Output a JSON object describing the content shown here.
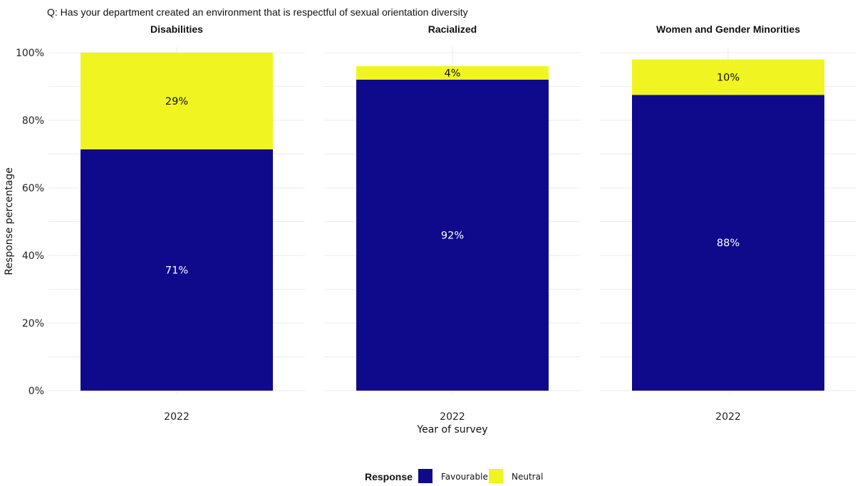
{
  "chart_data": {
    "type": "bar",
    "stacked": true,
    "title": "Q: Has your department created an environment that is respectful of sexual orientation diversity",
    "xlabel": "Year of survey",
    "ylabel": "Response percentage",
    "ylim": [
      0,
      100
    ],
    "yticks": [
      "0%",
      "20%",
      "40%",
      "60%",
      "80%",
      "100%"
    ],
    "grid": true,
    "legend": {
      "title": "Response",
      "position": "bottom",
      "items": [
        {
          "name": "Favourable",
          "color": "#0f0a8c"
        },
        {
          "name": "Neutral",
          "color": "#f0f522"
        }
      ]
    },
    "facets": [
      {
        "name": "Disabilities",
        "categories": [
          "2022"
        ],
        "series": [
          {
            "name": "Favourable",
            "values": [
              71
            ],
            "value_fraction": [
              0.714
            ],
            "label": "71%",
            "label_color": "#ffffff"
          },
          {
            "name": "Neutral",
            "values": [
              29
            ],
            "value_fraction": [
              0.286
            ],
            "label": "29%",
            "label_color": "#111111"
          }
        ]
      },
      {
        "name": "Racialized",
        "categories": [
          "2022"
        ],
        "series": [
          {
            "name": "Favourable",
            "values": [
              92
            ],
            "value_fraction": [
              0.92
            ],
            "label": "92%",
            "label_color": "#ffffff"
          },
          {
            "name": "Neutral",
            "values": [
              4
            ],
            "value_fraction": [
              0.04
            ],
            "label": "4%",
            "label_color": "#111111"
          }
        ]
      },
      {
        "name": "Women and Gender Minorities",
        "categories": [
          "2022"
        ],
        "series": [
          {
            "name": "Favourable",
            "values": [
              88
            ],
            "value_fraction": [
              0.875
            ],
            "label": "88%",
            "label_color": "#ffffff"
          },
          {
            "name": "Neutral",
            "values": [
              10
            ],
            "value_fraction": [
              0.105
            ],
            "label": "10%",
            "label_color": "#111111"
          }
        ]
      }
    ]
  }
}
